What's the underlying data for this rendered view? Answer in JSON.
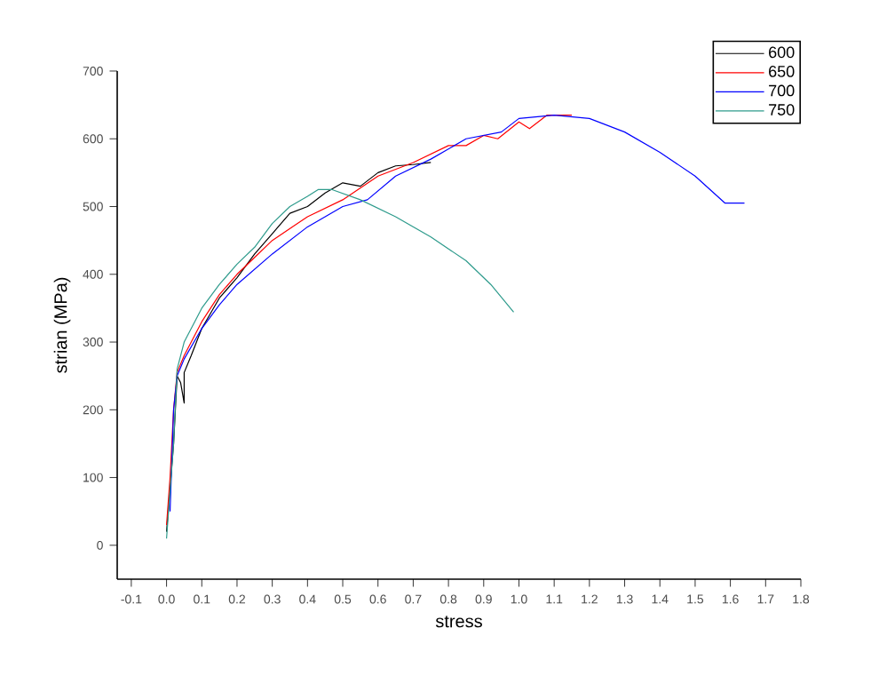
{
  "chart_data": {
    "type": "line",
    "xlabel": "stress",
    "ylabel": "strian (MPa)",
    "xlim": [
      -0.14,
      1.8
    ],
    "ylim": [
      -50,
      700
    ],
    "xticks": [
      -0.1,
      {
        "value": 0,
        "label": "0.0"
      },
      0.1,
      0.2,
      0.3,
      0.4,
      0.5,
      0.6,
      0.7,
      0.8,
      0.9,
      {
        "value": 1,
        "label": "1.0"
      },
      1.1,
      1.2,
      1.3,
      1.4,
      1.5,
      1.6,
      1.7,
      1.8
    ],
    "yticks": [
      0,
      100,
      200,
      300,
      400,
      500,
      600,
      700
    ],
    "grid": false,
    "legend": "top right",
    "marker": "none",
    "line_style": "solid",
    "series": [
      {
        "name": "600",
        "color": "#000000",
        "x": [
          0.0,
          0.02,
          0.03,
          0.04,
          0.05,
          0.05,
          0.07,
          0.1,
          0.15,
          0.2,
          0.25,
          0.3,
          0.35,
          0.4,
          0.45,
          0.5,
          0.55,
          0.6,
          0.65,
          0.7,
          0.75
        ],
        "values": [
          20,
          150,
          250,
          240,
          210,
          255,
          280,
          320,
          365,
          395,
          430,
          460,
          490,
          500,
          520,
          535,
          530,
          550,
          560,
          562,
          565
        ]
      },
      {
        "name": "650",
        "color": "#ff0000",
        "x": [
          0.0,
          0.01,
          0.02,
          0.03,
          0.05,
          0.1,
          0.15,
          0.2,
          0.25,
          0.3,
          0.4,
          0.5,
          0.6,
          0.7,
          0.8,
          0.85,
          0.9,
          0.94,
          1.0,
          1.03,
          1.08,
          1.15
        ],
        "values": [
          30,
          100,
          200,
          255,
          280,
          330,
          370,
          400,
          425,
          450,
          485,
          510,
          545,
          565,
          590,
          590,
          605,
          600,
          625,
          615,
          635,
          635
        ]
      },
      {
        "name": "700",
        "color": "#0000ff",
        "x": [
          0.01,
          0.02,
          0.03,
          0.05,
          0.1,
          0.15,
          0.2,
          0.3,
          0.4,
          0.5,
          0.57,
          0.65,
          0.75,
          0.85,
          0.95,
          1.0,
          1.1,
          1.2,
          1.3,
          1.4,
          1.5,
          1.585,
          1.64
        ],
        "values": [
          50,
          200,
          250,
          275,
          320,
          355,
          385,
          430,
          470,
          500,
          510,
          545,
          570,
          600,
          610,
          630,
          635,
          630,
          610,
          580,
          545,
          505,
          505
        ]
      },
      {
        "name": "750",
        "color": "#2e9b8c",
        "x": [
          0.0,
          0.02,
          0.03,
          0.05,
          0.1,
          0.15,
          0.2,
          0.25,
          0.3,
          0.35,
          0.4,
          0.43,
          0.47,
          0.55,
          0.65,
          0.75,
          0.85,
          0.92,
          0.985
        ],
        "values": [
          10,
          150,
          260,
          300,
          350,
          385,
          415,
          440,
          475,
          500,
          515,
          525,
          525,
          510,
          485,
          455,
          420,
          385,
          344
        ]
      }
    ]
  }
}
